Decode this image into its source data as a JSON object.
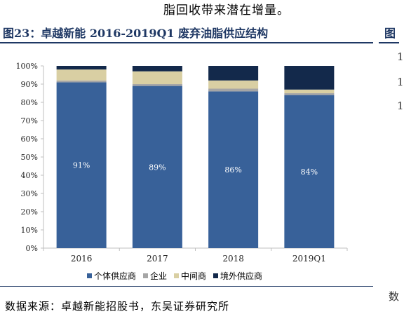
{
  "page": {
    "top_text": "脂回收带来潜在增量。",
    "figure_title": "图23：卓越新能 2016-2019Q1 废弃油脂供应结构",
    "right_fragment_title": "图",
    "right_fragment_digits": [
      "1",
      "1",
      "1"
    ],
    "right_fragment_bottom": "数",
    "source": "数据来源：卓越新能招股书，东吴证券研究所"
  },
  "chart_data": {
    "type": "bar",
    "stacked": true,
    "categories": [
      "2016",
      "2017",
      "2018",
      "2019Q1"
    ],
    "series": [
      {
        "name": "个体供应商",
        "values": [
          91,
          89,
          86,
          84
        ],
        "color": "#386199",
        "labels": [
          "91%",
          "89%",
          "86%",
          "84%"
        ]
      },
      {
        "name": "企业",
        "values": [
          1,
          1,
          1.5,
          1
        ],
        "color": "#a6a6a6"
      },
      {
        "name": "中间商",
        "values": [
          6,
          7,
          4.5,
          2
        ],
        "color": "#d9cfa3"
      },
      {
        "name": "境外供应商",
        "values": [
          2,
          3,
          8,
          13
        ],
        "color": "#13294b"
      }
    ],
    "ylim": [
      0,
      100
    ],
    "yticks": [
      "0%",
      "10%",
      "20%",
      "30%",
      "40%",
      "50%",
      "60%",
      "70%",
      "80%",
      "90%",
      "100%"
    ],
    "grid": false,
    "legend_position": "bottom"
  }
}
